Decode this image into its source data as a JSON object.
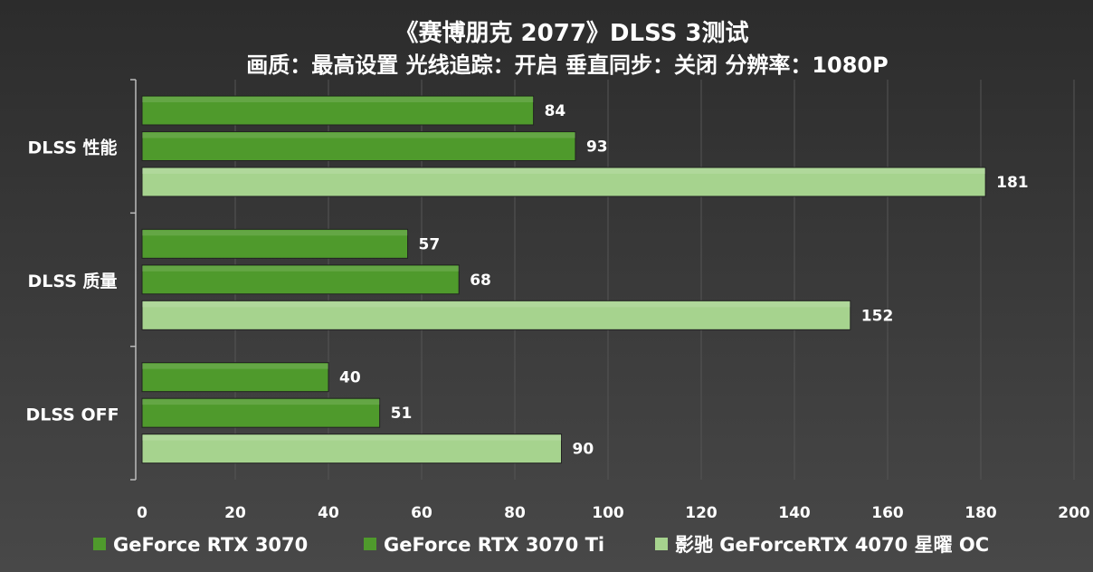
{
  "chart_data": {
    "type": "bar",
    "orientation": "horizontal",
    "title": "《赛博朋克 2077》DLSS 3测试",
    "subtitle": "画质：最高设置 光线追踪：开启  垂直同步：关闭 分辨率：1080P",
    "categories": [
      "DLSS 性能",
      "DLSS 质量",
      "DLSS OFF"
    ],
    "series": [
      {
        "name": "GeForce RTX 3070",
        "values": [
          84,
          57,
          40
        ],
        "color": "#4f9a2c"
      },
      {
        "name": "GeForce RTX 3070 Ti",
        "values": [
          93,
          68,
          51
        ],
        "color": "#4f9a2c"
      },
      {
        "name": "影驰 GeForceRTX 4070 星曜 OC",
        "values": [
          181,
          152,
          90
        ],
        "color": "#a6d38e"
      }
    ],
    "xlim": [
      0,
      200
    ],
    "xticks": [
      "0",
      "20",
      "40",
      "60",
      "80",
      "100",
      "120",
      "140",
      "160",
      "180",
      "200"
    ],
    "grid": true,
    "legend": "bottom",
    "background": "#3a3a3a"
  }
}
